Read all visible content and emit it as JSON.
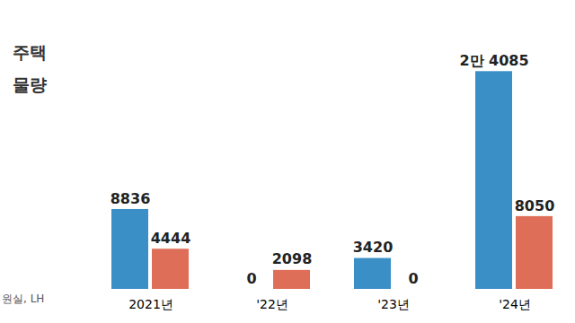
{
  "chart_data": {
    "type": "bar",
    "title": [
      "주택",
      "물량"
    ],
    "source": "원실, LH",
    "categories": [
      "2021년",
      "'22년",
      "'23년",
      "'24년"
    ],
    "series": [
      {
        "color": "#3b8fc7",
        "values": [
          8836,
          0,
          3420,
          24085
        ],
        "value_labels": [
          "8836",
          "0",
          "3420",
          "2만 4085"
        ]
      },
      {
        "color": "#df6e58",
        "values": [
          4444,
          2098,
          0,
          8050
        ]
      }
    ],
    "ylim": [
      0,
      26000
    ],
    "data_labels": true,
    "tick_labels": "x"
  }
}
